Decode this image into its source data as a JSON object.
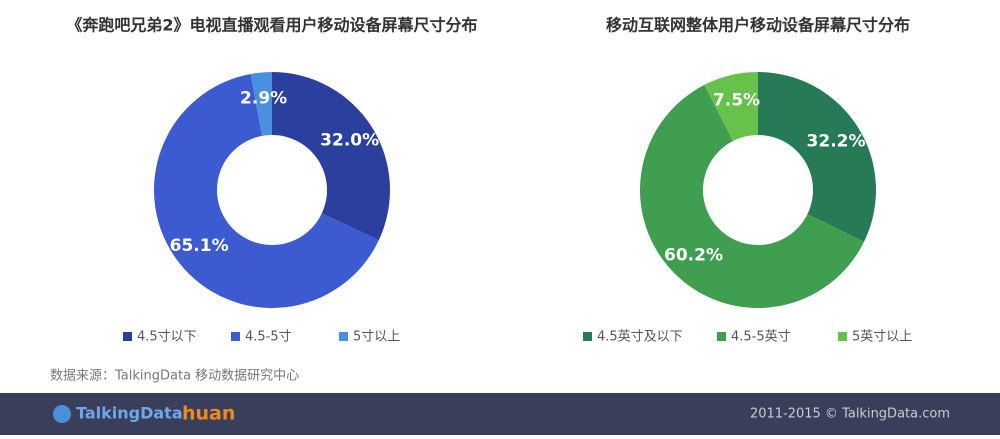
{
  "chart_data": [
    {
      "type": "donut",
      "title": "《奔跑吧兄弟2》电视直播观看用户移动设备屏幕尺寸分布",
      "categories": [
        "4.5寸以下",
        "4.5-5寸",
        "5寸以上"
      ],
      "values": [
        32.0,
        65.1,
        2.9
      ],
      "value_labels": [
        "32.0%",
        "65.1%",
        "2.9%"
      ],
      "colors": [
        "#2b3f9e",
        "#3c5bd0",
        "#4a90e0"
      ]
    },
    {
      "type": "donut",
      "title": "移动互联网整体用户移动设备屏幕尺寸分布",
      "categories": [
        "4.5英寸及以下",
        "4.5-5英寸",
        "5英寸以上"
      ],
      "values": [
        32.2,
        60.2,
        7.5
      ],
      "value_labels": [
        "32.2%",
        "60.2%",
        "7.5%"
      ],
      "colors": [
        "#267a55",
        "#3f9e4f",
        "#66c24a"
      ]
    }
  ],
  "source": "数据来源：TalkingData 移动数据研究中心",
  "footer": {
    "logo": "TalkingData",
    "partner": "huan",
    "copyright": "2011-2015 © TalkingData.com"
  }
}
